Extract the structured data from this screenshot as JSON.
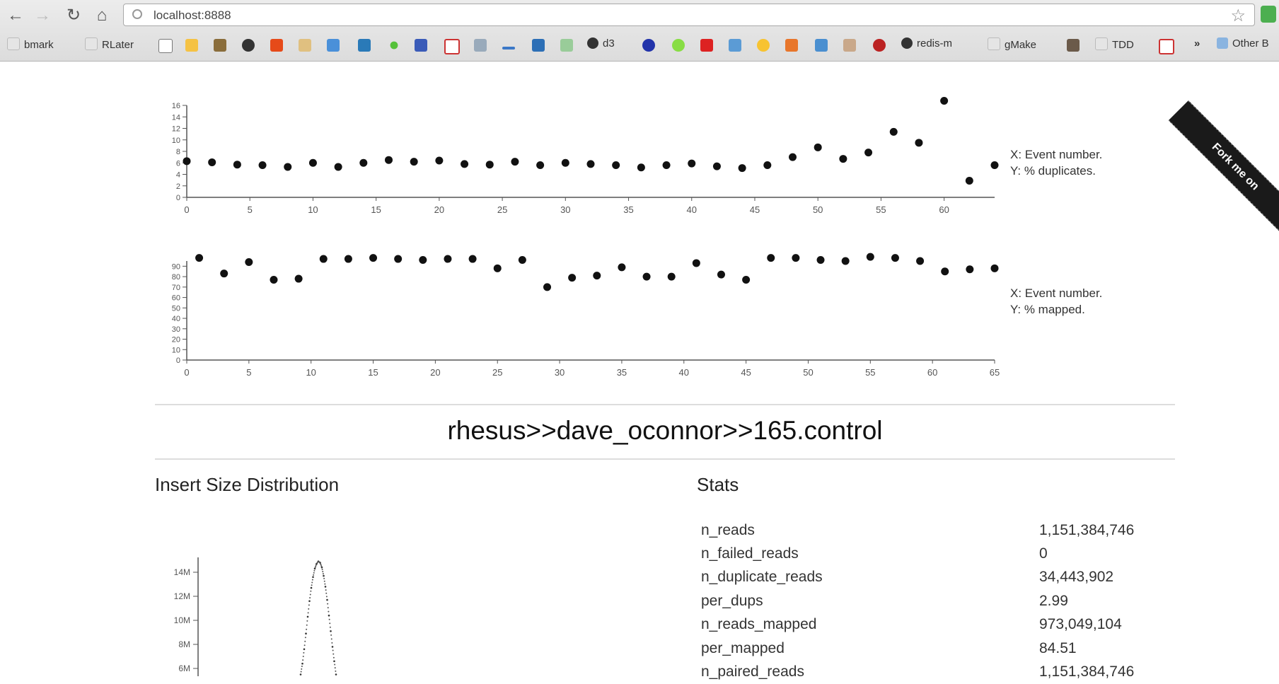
{
  "browser": {
    "url": "localhost:8888",
    "bookmarks": [
      {
        "label": "bmark"
      },
      {
        "label": "RLater"
      },
      {
        "label": "d3"
      },
      {
        "label": "redis-m"
      },
      {
        "label": "gMake"
      },
      {
        "label": "TDD"
      },
      {
        "label": "Other B"
      }
    ],
    "overflow_label": "»"
  },
  "ribbon": {
    "label": "Fork me on"
  },
  "chart_data": [
    {
      "type": "scatter",
      "xlim": [
        0,
        64
      ],
      "ylim": [
        0,
        16
      ],
      "x_ticks": [
        "0",
        "5",
        "10",
        "15",
        "20",
        "25",
        "30",
        "35",
        "40",
        "45",
        "50",
        "55",
        "60"
      ],
      "y_ticks": [
        "16",
        "14",
        "12",
        "10",
        "8",
        "6",
        "4",
        "2",
        "0"
      ],
      "legend_lines": [
        "X: Event number.",
        "Y: % duplicates."
      ],
      "x": [
        0,
        2,
        4,
        6,
        8,
        10,
        12,
        14,
        16,
        18,
        20,
        22,
        24,
        26,
        28,
        30,
        32,
        34,
        36,
        38,
        40,
        42,
        44,
        46,
        48,
        50,
        52,
        54,
        56,
        58,
        60,
        62,
        64
      ],
      "y": [
        6.3,
        6.1,
        5.7,
        5.6,
        5.3,
        6.0,
        5.3,
        6.0,
        6.5,
        6.2,
        6.4,
        5.8,
        5.7,
        6.2,
        5.6,
        6.0,
        5.8,
        5.6,
        5.2,
        5.6,
        5.9,
        5.4,
        5.1,
        5.6,
        7.0,
        8.7,
        6.7,
        7.8,
        11.4,
        9.5,
        16.8,
        2.9,
        5.6
      ]
    },
    {
      "type": "scatter",
      "xlim": [
        0,
        65
      ],
      "ylim": [
        0,
        95
      ],
      "x_ticks": [
        "0",
        "5",
        "10",
        "15",
        "20",
        "25",
        "30",
        "35",
        "40",
        "45",
        "50",
        "55",
        "60",
        "65"
      ],
      "y_ticks": [
        "90",
        "80",
        "70",
        "60",
        "50",
        "40",
        "30",
        "20",
        "10",
        "0"
      ],
      "legend_lines": [
        "X: Event number.",
        "Y: % mapped."
      ],
      "x": [
        1,
        3,
        5,
        7,
        9,
        11,
        13,
        15,
        17,
        19,
        21,
        23,
        25,
        27,
        29,
        31,
        33,
        35,
        37,
        39,
        41,
        43,
        45,
        47,
        49,
        51,
        53,
        55,
        57,
        59,
        61,
        63,
        65
      ],
      "y": [
        98,
        83,
        94,
        77,
        78,
        97,
        97,
        98,
        97,
        96,
        97,
        97,
        88,
        96,
        70,
        79,
        81,
        89,
        80,
        80,
        93,
        82,
        77,
        98,
        98,
        96,
        95,
        99,
        98,
        95,
        85,
        87,
        88
      ]
    },
    {
      "type": "line",
      "title": "Insert Size Distribution",
      "y_ticks": [
        "14M",
        "12M",
        "10M",
        "8M",
        "6M"
      ],
      "ylim": [
        5,
        15
      ],
      "x": [
        0.0,
        0.02,
        0.04,
        0.06,
        0.08,
        0.1,
        0.12,
        0.14,
        0.16,
        0.18,
        0.2,
        0.22,
        0.24,
        0.26,
        0.28,
        0.3,
        0.32,
        0.34,
        0.36,
        0.38,
        0.4
      ],
      "y": [
        5.5,
        6.4,
        7.6,
        8.9,
        10.3,
        11.6,
        12.7,
        13.6,
        14.3,
        14.7,
        14.9,
        14.8,
        14.4,
        13.7,
        12.8,
        11.7,
        10.4,
        9.1,
        7.8,
        6.6,
        5.5
      ]
    }
  ],
  "page": {
    "title": "rhesus>>dave_oconnor>>165.control",
    "insert_title": "Insert Size Distribution",
    "stats_title": "Stats"
  },
  "stats": [
    {
      "key": "n_reads",
      "value": "1,151,384,746"
    },
    {
      "key": "n_failed_reads",
      "value": "0"
    },
    {
      "key": "n_duplicate_reads",
      "value": "34,443,902"
    },
    {
      "key": "per_dups",
      "value": "2.99"
    },
    {
      "key": "n_reads_mapped",
      "value": "973,049,104"
    },
    {
      "key": "per_mapped",
      "value": "84.51"
    },
    {
      "key": "n_paired_reads",
      "value": "1,151,384,746"
    }
  ]
}
